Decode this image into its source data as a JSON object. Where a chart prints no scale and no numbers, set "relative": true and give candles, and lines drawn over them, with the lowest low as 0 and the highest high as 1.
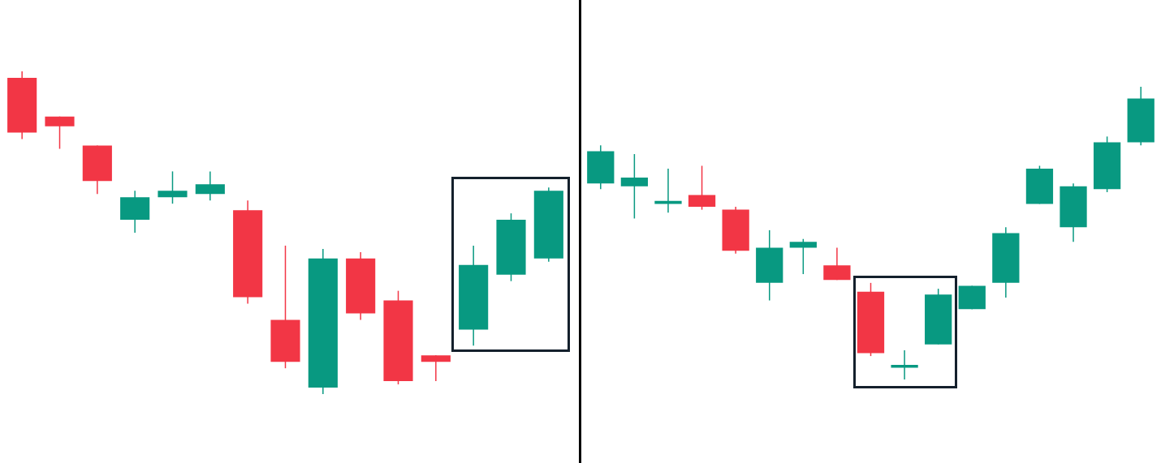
{
  "chart_data": [
    {
      "type": "candlestick",
      "relative": true,
      "categories": [
        null,
        null,
        null,
        null,
        null,
        null,
        null,
        null,
        null,
        null,
        null,
        null,
        null,
        null,
        null
      ],
      "ohlc": [
        [
          0.98,
          1,
          0.79,
          0.81
        ],
        [
          0.86,
          0.86,
          0.76,
          0.83
        ],
        [
          0.77,
          0.77,
          0.62,
          0.66
        ],
        [
          0.54,
          0.63,
          0.5,
          0.61
        ],
        [
          0.61,
          0.69,
          0.59,
          0.63
        ],
        [
          0.62,
          0.69,
          0.6,
          0.65
        ],
        [
          0.57,
          0.6,
          0.28,
          0.3
        ],
        [
          0.23,
          0.46,
          0.08,
          0.1
        ],
        [
          0.02,
          0.45,
          0,
          0.42
        ],
        [
          0.42,
          0.44,
          0.23,
          0.25
        ],
        [
          0.29,
          0.32,
          0.03,
          0.04
        ],
        [
          0.12,
          0.12,
          0.04,
          0.1
        ],
        [
          0.2,
          0.46,
          0.15,
          0.4
        ],
        [
          0.37,
          0.56,
          0.35,
          0.54
        ],
        [
          0.42,
          0.64,
          0.41,
          0.63
        ]
      ],
      "colors": [
        "#f23645",
        "#f23645",
        "#f23645",
        "#089981",
        "#089981",
        "#089981",
        "#f23645",
        "#f23645",
        "#089981",
        "#f23645",
        "#f23645",
        "#f23645",
        "#089981",
        "#089981",
        "#089981"
      ]
    },
    {
      "type": "candlestick",
      "relative": true,
      "categories": [
        null,
        null,
        null,
        null,
        null,
        null,
        null,
        null,
        null,
        null,
        null,
        null,
        null,
        null,
        null,
        null,
        null
      ],
      "ohlc": [
        [
          0.67,
          0.8,
          0.65,
          0.78
        ],
        [
          0.66,
          0.77,
          0.55,
          0.69
        ],
        [
          0.6,
          0.72,
          0.57,
          0.61
        ],
        [
          0.63,
          0.73,
          0.58,
          0.59
        ],
        [
          0.58,
          0.59,
          0.43,
          0.44
        ],
        [
          0.33,
          0.51,
          0.27,
          0.45
        ],
        [
          0.45,
          0.48,
          0.36,
          0.47
        ],
        [
          0.39,
          0.45,
          0.34,
          0.34
        ],
        [
          0.3,
          0.33,
          0.08,
          0.09
        ],
        [
          0.04,
          0.1,
          0,
          0.05
        ],
        [
          0.12,
          0.31,
          0.12,
          0.29
        ],
        [
          0.24,
          0.32,
          0.24,
          0.32
        ],
        [
          0.33,
          0.52,
          0.28,
          0.5
        ],
        [
          0.6,
          0.73,
          0.6,
          0.72
        ],
        [
          0.52,
          0.67,
          0.47,
          0.66
        ],
        [
          0.65,
          0.83,
          0.64,
          0.81
        ],
        [
          0.81,
          1,
          0.8,
          0.96
        ]
      ],
      "colors": [
        "#089981",
        "#089981",
        "#089981",
        "#f23645",
        "#f23645",
        "#089981",
        "#089981",
        "#f23645",
        "#f23645",
        "#089981",
        "#089981",
        "#089981",
        "#089981",
        "#089981",
        "#089981",
        "#089981",
        "#089981"
      ]
    }
  ]
}
